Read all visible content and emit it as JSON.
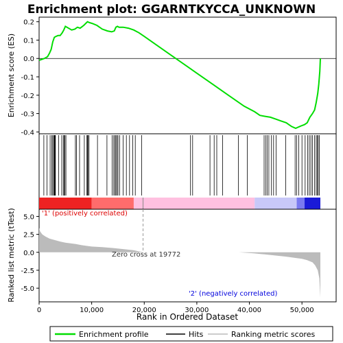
{
  "chart_data": [
    {
      "type": "line",
      "title": "Enrichment plot: GGARNTKYCCA_UNKNOWN",
      "ylabel": "Enrichment score (ES)",
      "ylim": [
        -0.41,
        0.225
      ],
      "yticks": [
        0.2,
        0.1,
        0.0,
        -0.1,
        -0.2,
        -0.3,
        -0.4
      ],
      "ytick_labels": [
        "0.2",
        "0.1",
        "0.0",
        "-0.1",
        "-0.2",
        "-0.3",
        "-0.4"
      ],
      "series": [
        {
          "name": "Enrichment profile",
          "color": "#00dd00",
          "x": [
            0,
            1000,
            1600,
            2000,
            2300,
            2600,
            2900,
            3200,
            3600,
            4000,
            4400,
            4700,
            5000,
            6200,
            6800,
            7300,
            7800,
            8500,
            9200,
            9600,
            10200,
            11000,
            12000,
            13000,
            13800,
            14300,
            14600,
            14900,
            15200,
            16000,
            17000,
            18000,
            19000,
            20000,
            22000,
            25000,
            28000,
            30000,
            33000,
            36000,
            39000,
            41000,
            42000,
            43000,
            44000,
            45000,
            46000,
            47000,
            48000,
            48800,
            49200,
            49600,
            50000,
            50500,
            51000,
            51500,
            52000,
            52400,
            52700,
            53000,
            53200,
            53400,
            53500
          ],
          "y": [
            -0.01,
            0.0,
            0.01,
            0.03,
            0.05,
            0.09,
            0.115,
            0.12,
            0.125,
            0.125,
            0.14,
            0.155,
            0.175,
            0.155,
            0.16,
            0.17,
            0.165,
            0.18,
            0.2,
            0.195,
            0.19,
            0.18,
            0.16,
            0.15,
            0.145,
            0.15,
            0.17,
            0.175,
            0.17,
            0.17,
            0.165,
            0.155,
            0.14,
            0.12,
            0.08,
            0.02,
            -0.04,
            -0.08,
            -0.14,
            -0.2,
            -0.26,
            -0.29,
            -0.31,
            -0.315,
            -0.32,
            -0.33,
            -0.34,
            -0.35,
            -0.37,
            -0.38,
            -0.375,
            -0.37,
            -0.365,
            -0.36,
            -0.35,
            -0.32,
            -0.3,
            -0.28,
            -0.24,
            -0.19,
            -0.14,
            -0.07,
            0.0
          ]
        }
      ]
    },
    {
      "type": "barcode",
      "name": "Hits",
      "hit_positions": [
        900,
        1500,
        2100,
        2400,
        2600,
        2800,
        2900,
        3000,
        3100,
        3700,
        4300,
        4600,
        4800,
        4900,
        5100,
        6900,
        7100,
        7700,
        8600,
        9100,
        9200,
        9300,
        9500,
        11100,
        12900,
        13900,
        14200,
        14400,
        14600,
        14800,
        15000,
        15300,
        16000,
        16600,
        17200,
        17800,
        18300,
        19500,
        28800,
        29200,
        32500,
        33300,
        33800,
        34900,
        37900,
        39600,
        42800,
        43100,
        43400,
        43700,
        44200,
        44600,
        45100,
        46900,
        48700,
        49000,
        49400,
        50000,
        50600,
        51100,
        51400,
        51700,
        52000,
        52400,
        52700,
        52900,
        53100,
        53300
      ]
    },
    {
      "type": "area",
      "xlabel": "Rank in Ordered Dataset",
      "ylabel": "Ranked list metric (tTest)",
      "xlim": [
        0,
        56500
      ],
      "ylim": [
        -6.9,
        6.0
      ],
      "yticks": [
        5.0,
        2.5,
        0.0,
        -2.5,
        -5.0
      ],
      "ytick_labels": [
        "5.0",
        "2.5",
        "0.0",
        "-2.5",
        "-5.0"
      ],
      "xticks": [
        0,
        10000,
        20000,
        30000,
        40000,
        50000
      ],
      "xtick_labels": [
        "0",
        "10,000",
        "20,000",
        "30,000",
        "40,000",
        "50,000"
      ],
      "x": [
        0,
        200,
        600,
        1200,
        2000,
        3000,
        4000,
        5000,
        6000,
        7000,
        8000,
        9000,
        10000,
        12000,
        14000,
        16000,
        18000,
        19772,
        22000,
        26000,
        30000,
        34000,
        38000,
        41000,
        43000,
        45000,
        47000,
        49000,
        50000,
        51000,
        52000,
        52500,
        53000,
        53300,
        53500
      ],
      "values": [
        3.4,
        2.9,
        2.5,
        2.2,
        1.9,
        1.7,
        1.5,
        1.35,
        1.25,
        1.15,
        1.0,
        0.9,
        0.8,
        0.72,
        0.6,
        0.45,
        0.3,
        0.0,
        0.0,
        0.0,
        0.0,
        0.0,
        0.0,
        -0.15,
        -0.3,
        -0.45,
        -0.6,
        -0.8,
        -0.9,
        -1.1,
        -1.4,
        -1.8,
        -2.5,
        -3.6,
        -6.3
      ],
      "fill_color": "#bbbbbb",
      "zero_cross_label": "Zero cross at 19772",
      "zero_cross": 19772,
      "positive_label": "'1' (positively correlated)",
      "negative_label": "'2' (negatively correlated)",
      "positive_label_color": "#dd0000",
      "negative_label_color": "#0000dd"
    }
  ],
  "colorbar": {
    "segments": [
      {
        "from": 0,
        "to": 10000,
        "color": "#ee2222"
      },
      {
        "from": 10000,
        "to": 18000,
        "color": "#ff6c6c"
      },
      {
        "from": 18000,
        "to": 41000,
        "color": "#ffc0e0"
      },
      {
        "from": 41000,
        "to": 49000,
        "color": "#c8c8f8"
      },
      {
        "from": 49000,
        "to": 50500,
        "color": "#7a7af0"
      },
      {
        "from": 50500,
        "to": 53500,
        "color": "#1a1ad8"
      }
    ],
    "zero_mark": 19772
  },
  "legend": {
    "items": [
      {
        "label": "Enrichment profile",
        "color": "#00dd00"
      },
      {
        "label": "Hits",
        "color": "#000000"
      },
      {
        "label": "Ranking metric scores",
        "color": "#bbbbbb"
      }
    ]
  }
}
